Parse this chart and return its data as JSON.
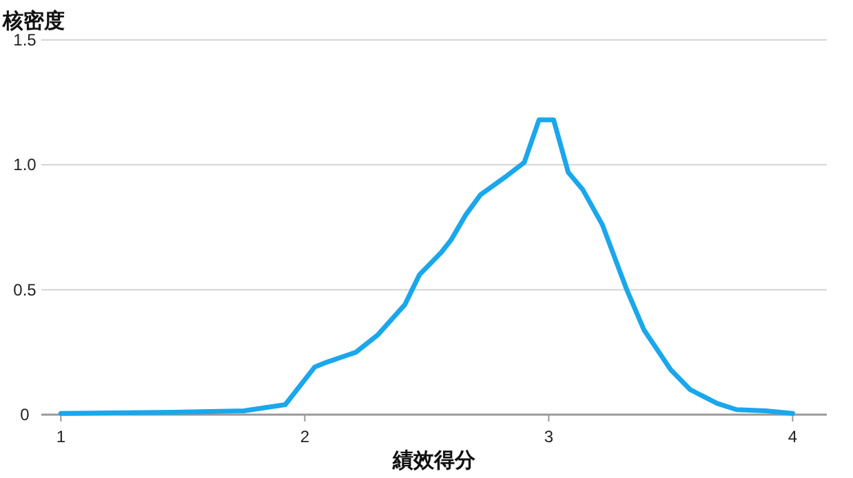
{
  "chart_data": {
    "type": "line",
    "xlabel": "績效得分",
    "ylabel": "核密度",
    "x": [
      1,
      1.5,
      1.75,
      1.92,
      2.04,
      2.09,
      2.21,
      2.3,
      2.41,
      2.47,
      2.56,
      2.6,
      2.66,
      2.72,
      2.82,
      2.9,
      2.96,
      3.02,
      3.08,
      3.14,
      3.22,
      3.32,
      3.39,
      3.5,
      3.58,
      3.69,
      3.77,
      3.89,
      4
    ],
    "values": [
      0.005,
      0.01,
      0.015,
      0.04,
      0.19,
      0.21,
      0.25,
      0.32,
      0.44,
      0.56,
      0.65,
      0.7,
      0.8,
      0.88,
      0.95,
      1.01,
      1.18,
      1.18,
      0.97,
      0.9,
      0.76,
      0.5,
      0.34,
      0.18,
      0.1,
      0.045,
      0.02,
      0.015,
      0.005
    ],
    "color": "#1aa7ec",
    "xlim": [
      0.92,
      4.14
    ],
    "ylim": [
      0,
      1.5
    ],
    "xticks": [
      1,
      2,
      3,
      4
    ],
    "yticks": [
      0,
      0.5,
      {
        "value": 1,
        "label": "1.0"
      },
      1.5
    ],
    "grid": "y"
  }
}
